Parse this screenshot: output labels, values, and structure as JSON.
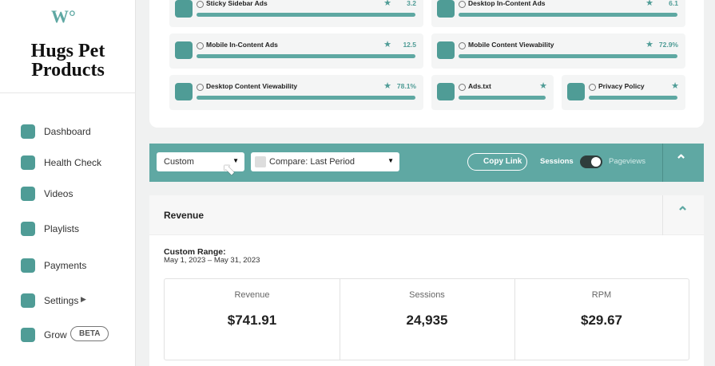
{
  "sidebar": {
    "brand": "Hugs Pet Products",
    "nav": [
      "Dashboard",
      "Health Check",
      "Videos",
      "Playlists",
      "Payments",
      "Settings",
      "Grow"
    ],
    "badge": "BETA"
  },
  "metrics": [
    {
      "label": "Sticky Sidebar Ads",
      "score": "3.2"
    },
    {
      "label": "Desktop In-Content Ads",
      "score": "6.1"
    },
    {
      "label": "Mobile In-Content Ads",
      "score": "12.5"
    },
    {
      "label": "Mobile Content Viewability",
      "score": "72.9%"
    },
    {
      "label": "Desktop Content Viewability",
      "score": "78.1%"
    },
    {
      "label": "Ads.txt"
    },
    {
      "label": "Privacy Policy"
    }
  ],
  "toolbar": {
    "range": "Custom",
    "compare": "Compare: Last Period",
    "copy_link": "Copy Link",
    "toggle_left": "Sessions",
    "toggle_right": "Pageviews"
  },
  "revenue": {
    "title": "Revenue",
    "range_label": "Custom Range:",
    "range": "May 1, 2023 – May 31, 2023",
    "stats": [
      {
        "label": "Revenue",
        "value": "$741.91"
      },
      {
        "label": "Sessions",
        "value": "24,935"
      },
      {
        "label": "RPM",
        "value": "$29.67"
      }
    ]
  }
}
